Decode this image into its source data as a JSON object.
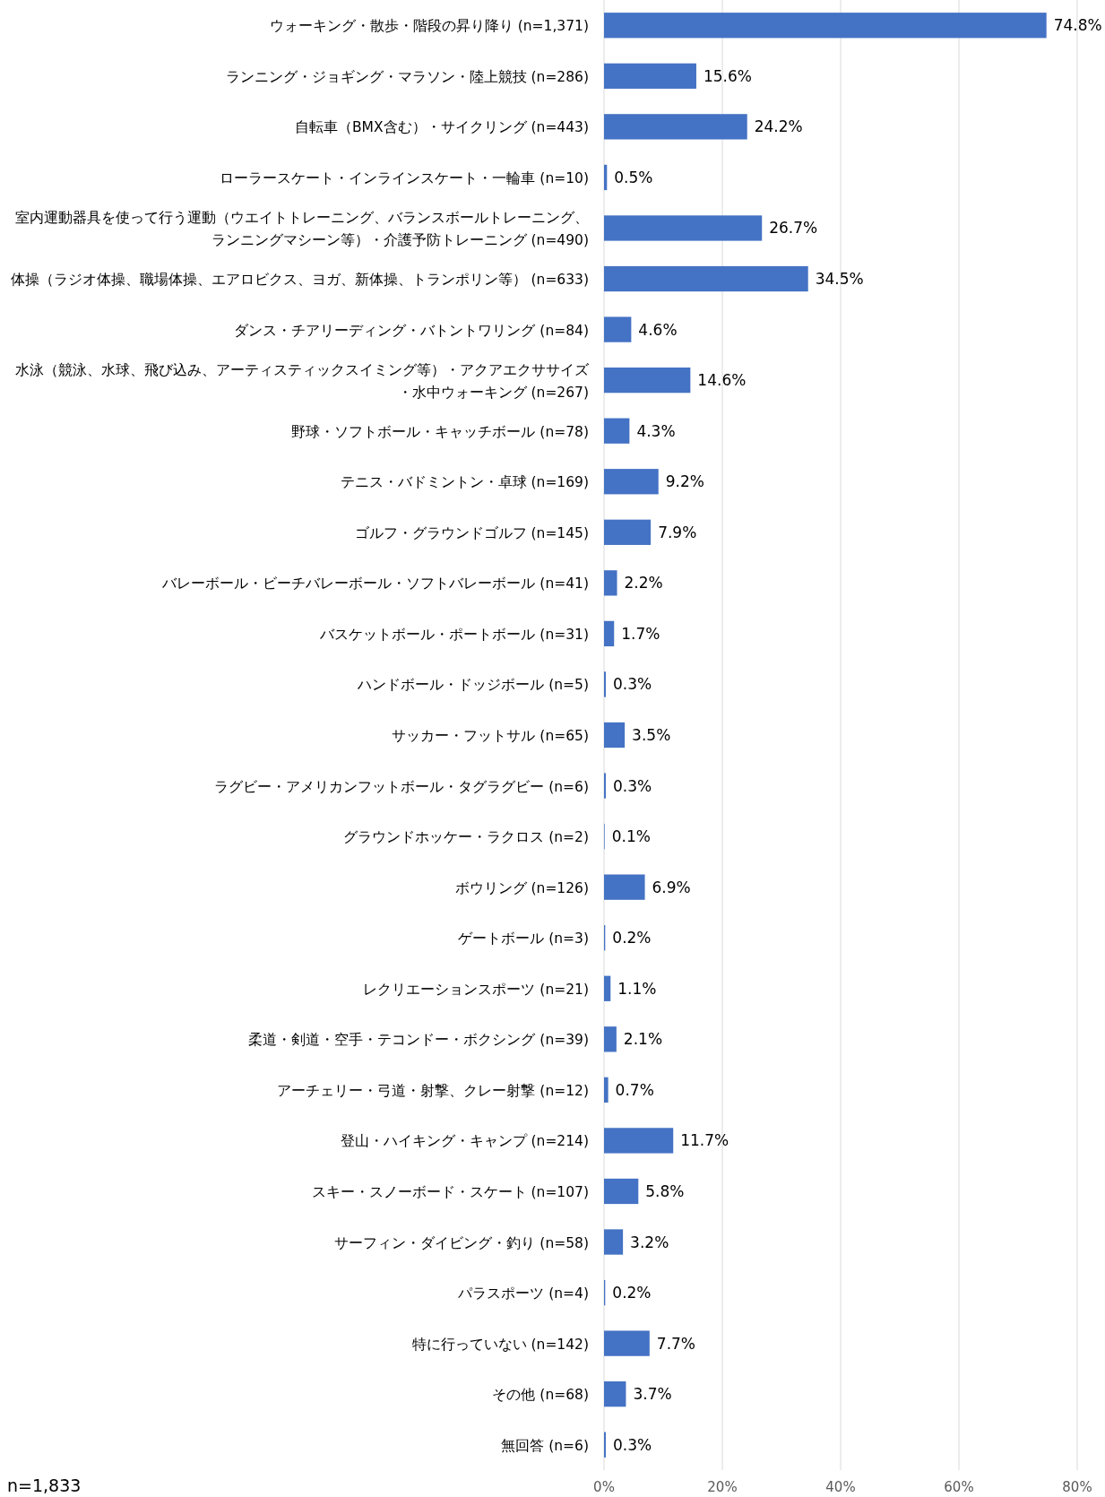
{
  "chart_data": {
    "type": "bar",
    "orientation": "horizontal",
    "categories": [
      "ウォーキング・散歩・階段の昇り降り (n=1,371)",
      "ランニング・ジョギング・マラソン・陸上競技 (n=286)",
      "自転車（BMX含む）・サイクリング (n=443)",
      "ローラースケート・インラインスケート・一輪車 (n=10)",
      "室内運動器具を使って行う運動（ウエイトトレーニング、バランスボールトレーニング、ランニングマシーン等）・介護予防トレーニング (n=490)",
      "体操（ラジオ体操、職場体操、エアロビクス、ヨガ、新体操、トランポリン等） (n=633)",
      "ダンス・チアリーディング・バトントワリング (n=84)",
      "水泳（競泳、水球、飛び込み、アーティスティックスイミング等）・アクアエクササイズ・水中ウォーキング (n=267)",
      "野球・ソフトボール・キャッチボール (n=78)",
      "テニス・バドミントン・卓球 (n=169)",
      "ゴルフ・グラウンドゴルフ (n=145)",
      "バレーボール・ビーチバレーボール・ソフトバレーボール (n=41)",
      "バスケットボール・ポートボール (n=31)",
      "ハンドボール・ドッジボール (n=5)",
      "サッカー・フットサル (n=65)",
      "ラグビー・アメリカンフットボール・タグラグビー (n=6)",
      "グラウンドホッケー・ラクロス (n=2)",
      "ボウリング (n=126)",
      "ゲートボール (n=3)",
      "レクリエーションスポーツ (n=21)",
      "柔道・剣道・空手・テコンドー・ボクシング (n=39)",
      "アーチェリー・弓道・射撃、クレー射撃 (n=12)",
      "登山・ハイキング・キャンプ (n=214)",
      "スキー・スノーボード・スケート (n=107)",
      "サーフィン・ダイビング・釣り (n=58)",
      "パラスポーツ (n=4)",
      "特に行っていない (n=142)",
      "その他 (n=68)",
      "無回答 (n=6)"
    ],
    "values": [
      74.8,
      15.6,
      24.2,
      0.5,
      26.7,
      34.5,
      4.6,
      14.6,
      4.3,
      9.2,
      7.9,
      2.2,
      1.7,
      0.3,
      3.5,
      0.3,
      0.1,
      6.9,
      0.2,
      1.1,
      2.1,
      0.7,
      11.7,
      5.8,
      3.2,
      0.2,
      7.7,
      3.7,
      0.3
    ],
    "value_labels": [
      "74.8%",
      "15.6%",
      "24.2%",
      "0.5%",
      "26.7%",
      "34.5%",
      "4.6%",
      "14.6%",
      "4.3%",
      "9.2%",
      "7.9%",
      "2.2%",
      "1.7%",
      "0.3%",
      "3.5%",
      "0.3%",
      "0.1%",
      "6.9%",
      "0.2%",
      "1.1%",
      "2.1%",
      "0.7%",
      "11.7%",
      "5.8%",
      "3.2%",
      "0.2%",
      "7.7%",
      "3.7%",
      "0.3%"
    ],
    "color": "#4472c4",
    "xlim": [
      0,
      80
    ],
    "xticks": [
      {
        "value": 0,
        "label": "0%"
      },
      {
        "value": 20,
        "label": "20%"
      },
      {
        "value": 40,
        "label": "40%"
      },
      {
        "value": 60,
        "label": "60%"
      },
      {
        "value": 80,
        "label": "80%"
      }
    ],
    "grid": "x",
    "annotations": [
      "n=1,833"
    ]
  }
}
